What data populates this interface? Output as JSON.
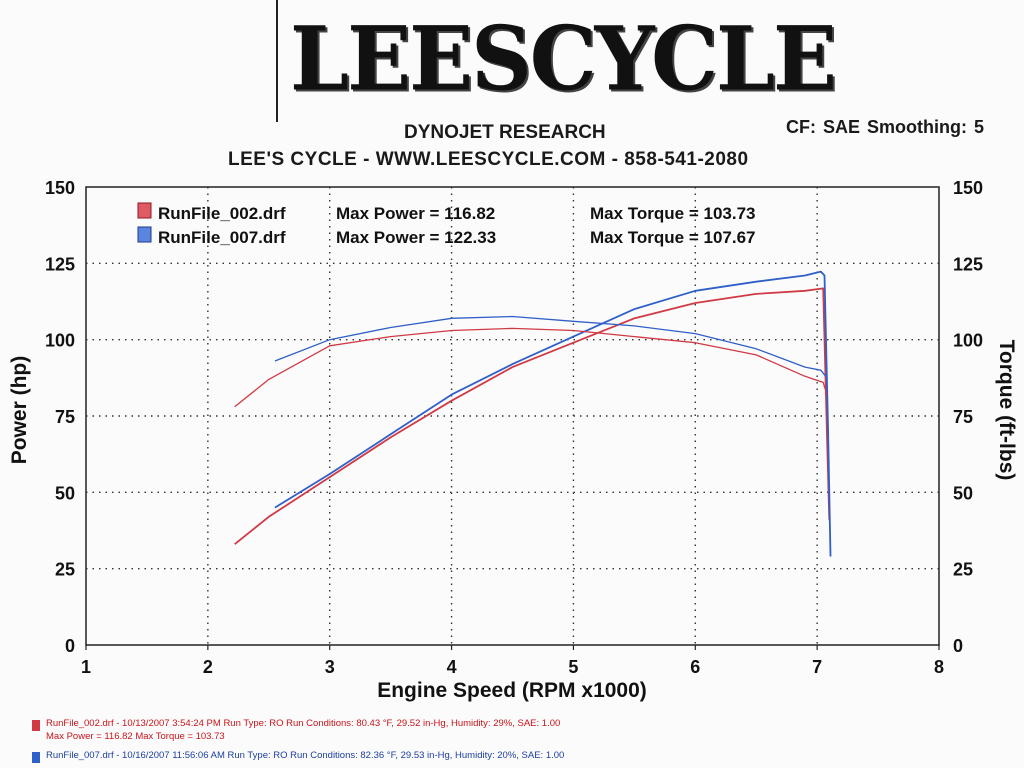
{
  "header": {
    "logo_text": "LEESCYCLE",
    "title": "DYNOJET RESEARCH",
    "subtitle": "LEE'S CYCLE - WWW.LEESCYCLE.COM - 858-541-2080",
    "settings": "CF: SAE  Smoothing: 5"
  },
  "legend": {
    "row1_file": "RunFile_002.drf",
    "row1_power": "Max Power = 116.82",
    "row1_torque": "Max Torque = 103.73",
    "row2_file": "RunFile_007.drf",
    "row2_power": "Max Power = 122.33",
    "row2_torque": "Max Torque = 107.67"
  },
  "footer": {
    "run1_line1": "RunFile_002.drf - 10/13/2007 3:54:24 PM  Run Type: RO  Run Conditions: 80.43 °F, 29.52 in-Hg,  Humidity:  29%, SAE: 1.00",
    "run1_line2": "Max Power = 116.82  Max Torque = 103.73",
    "run2_line1": "RunFile_007.drf - 10/16/2007 11:56:06 AM  Run Type: RO  Run Conditions: 82.36 °F, 29.53 in-Hg,  Humidity:  20%, SAE: 1.00"
  },
  "colors": {
    "red": "#d03a45",
    "blue": "#2f5fc8",
    "grid": "#333333"
  },
  "chart_data": {
    "type": "line",
    "xlabel": "Engine Speed (RPM x1000)",
    "ylabel": "Power (hp)",
    "y2label": "Torque (ft-lbs)",
    "xlim": [
      1,
      8
    ],
    "ylim": [
      0,
      150
    ],
    "y2lim": [
      0,
      150
    ],
    "x_ticks": [
      "1",
      "2",
      "3",
      "4",
      "5",
      "6",
      "7",
      "8"
    ],
    "y_ticks": [
      "0",
      "25",
      "50",
      "75",
      "100",
      "125",
      "150"
    ],
    "grid": true,
    "series": [
      {
        "name": "RunFile_002.drf",
        "measure": "power",
        "color": "#d03a45",
        "x": [
          2.22,
          2.5,
          3.0,
          3.5,
          4.0,
          4.5,
          5.0,
          5.5,
          6.0,
          6.5,
          6.9,
          7.05,
          7.08,
          7.1
        ],
        "y": [
          33,
          42,
          55,
          68,
          80,
          91,
          99,
          107,
          112,
          115,
          116,
          116.8,
          70,
          41
        ]
      },
      {
        "name": "RunFile_007.drf",
        "measure": "power",
        "color": "#2f5fc8",
        "x": [
          2.55,
          3.0,
          3.5,
          4.0,
          4.5,
          5.0,
          5.5,
          6.0,
          6.5,
          6.9,
          7.03,
          7.06,
          7.09,
          7.11
        ],
        "y": [
          45,
          56,
          69,
          82,
          92,
          101,
          110,
          116,
          119,
          121,
          122.3,
          121,
          70,
          29
        ]
      },
      {
        "name": "RunFile_002.drf",
        "measure": "torque",
        "color": "#d03a45",
        "x": [
          2.22,
          2.5,
          3.0,
          3.5,
          4.0,
          4.5,
          5.0,
          5.5,
          6.0,
          6.5,
          6.9,
          7.05,
          7.08
        ],
        "y": [
          78,
          87,
          98,
          101,
          103,
          103.7,
          103,
          101,
          99,
          95,
          88,
          86,
          82
        ]
      },
      {
        "name": "RunFile_007.drf",
        "measure": "torque",
        "color": "#2f5fc8",
        "x": [
          2.55,
          3.0,
          3.5,
          4.0,
          4.5,
          5.0,
          5.5,
          6.0,
          6.5,
          6.9,
          7.03,
          7.07
        ],
        "y": [
          93,
          100,
          104,
          107,
          107.6,
          106,
          104.5,
          102,
          97,
          91,
          90,
          88
        ]
      }
    ]
  }
}
